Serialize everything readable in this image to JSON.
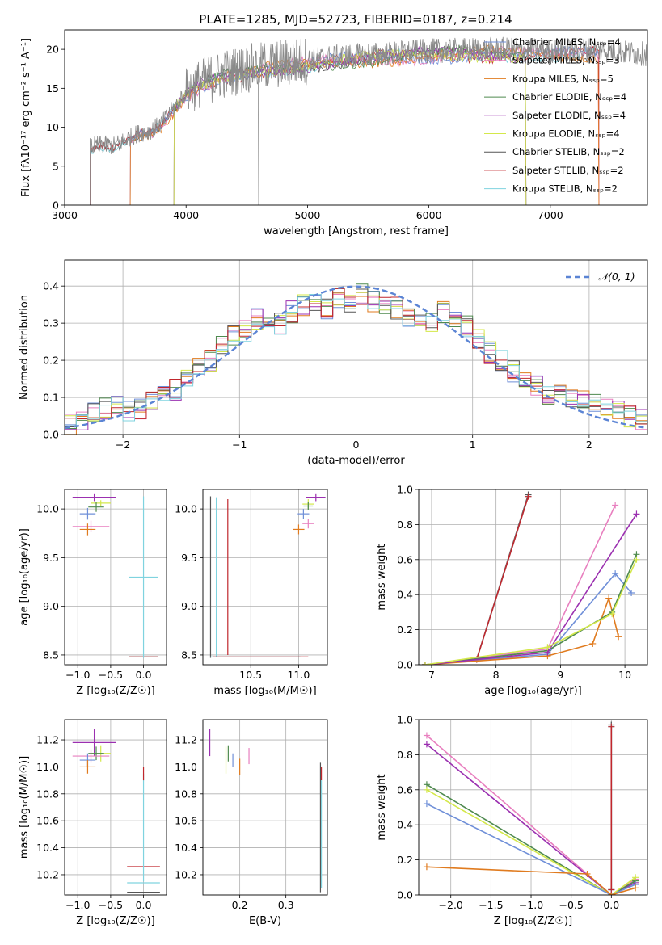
{
  "figure": {
    "title": "PLATE=1285, MJD=52723, FIBERID=0187, z=0.214"
  },
  "model_colors": {
    "Chabrier MILES": "#6f8fd8",
    "Salpeter MILES": "#e87fbf",
    "Kroupa MILES": "#e07b1f",
    "Chabrier ELODIE": "#4f8a4f",
    "Salpeter ELODIE": "#9b30b0",
    "Kroupa ELODIE": "#d4e84a",
    "Chabrier STELIB": "#555555",
    "Salpeter STELIB": "#c0272d",
    "Kroupa STELIB": "#7fd3df"
  },
  "chart_data": [
    {
      "id": "spectrum",
      "type": "line",
      "xlabel": "wavelength [Angstrom, rest frame]",
      "ylabel": "Flux [fλ10⁻¹⁷ erg cm⁻² s⁻¹ A⁻¹]",
      "xlim": [
        3000,
        7800
      ],
      "ylim": [
        0,
        22.5
      ],
      "xticks": [
        3000,
        4000,
        5000,
        6000,
        7000
      ],
      "yticks": [
        0,
        5,
        10,
        15,
        20
      ],
      "grid": false,
      "legend_position": "top-right",
      "legend": [
        "Chabrier MILES, Nₛₛₚ=4",
        "Salpeter MILES, Nₛₛₚ=3",
        "Kroupa MILES, Nₛₛₚ=5",
        "Chabrier ELODIE, Nₛₛₚ=4",
        "Salpeter ELODIE, Nₛₛₚ=4",
        "Kroupa ELODIE, Nₛₛₚ=4",
        "Chabrier STELIB, Nₛₛₚ=2",
        "Salpeter STELIB, Nₛₛₚ=2",
        "Kroupa STELIB, Nₛₛₚ=2"
      ],
      "data_curve": {
        "x": [
          3210,
          3300,
          3400,
          3500,
          3600,
          3700,
          3800,
          3900,
          4000,
          4100,
          4200,
          4300,
          4400,
          4500,
          4600,
          4700,
          4800,
          4900,
          5000,
          5200,
          5400,
          5600,
          5800,
          6000,
          6200,
          6400,
          6600,
          6800,
          7000,
          7200,
          7400,
          7600,
          7800
        ],
        "y": [
          7.5,
          7.8,
          7.6,
          8.4,
          9.2,
          9.5,
          10.5,
          12.5,
          14.5,
          15.5,
          16.2,
          16.8,
          17.2,
          17.5,
          17.8,
          18.0,
          18.2,
          18.4,
          18.6,
          19.0,
          19.2,
          19.4,
          19.6,
          19.8,
          19.9,
          20.0,
          20.0,
          19.9,
          19.8,
          19.9,
          20.0,
          19.6,
          19.4
        ]
      },
      "model_start_wavelengths": {
        "Chabrier MILES": 3540,
        "Salpeter MILES": 3540,
        "Kroupa MILES": 3540,
        "Chabrier ELODIE": 3900,
        "Salpeter ELODIE": 3900,
        "Kroupa ELODIE": 3900,
        "Chabrier STELIB": 3210,
        "Salpeter STELIB": 3210,
        "Kroupa STELIB": 3210
      }
    },
    {
      "id": "residuals",
      "type": "histogram",
      "xlabel": "(data-model)/error",
      "ylabel": "Normed distribution",
      "xlim": [
        -2.5,
        2.5
      ],
      "ylim": [
        0,
        0.47
      ],
      "xticks": [
        -2,
        -1,
        0,
        1,
        2
      ],
      "yticks": [
        0.0,
        0.1,
        0.2,
        0.3,
        0.4
      ],
      "grid": true,
      "legend_position": "top-right",
      "legend": [
        "𝒩(0, 1)"
      ],
      "bin_width": 0.1,
      "bins_x0": [
        -2.5,
        -2.4,
        -2.3,
        -2.2,
        -2.1,
        -2.0,
        -1.9,
        -1.8,
        -1.7,
        -1.6,
        -1.5,
        -1.4,
        -1.3,
        -1.2,
        -1.1,
        -1.0,
        -0.9,
        -0.8,
        -0.7,
        -0.6,
        -0.5,
        -0.4,
        -0.3,
        -0.2,
        -0.1,
        0.0,
        0.1,
        0.2,
        0.3,
        0.4,
        0.5,
        0.6,
        0.7,
        0.8,
        0.9,
        1.0,
        1.1,
        1.2,
        1.3,
        1.4,
        1.5,
        1.6,
        1.7,
        1.8,
        1.9,
        2.0,
        2.1,
        2.2,
        2.3,
        2.4
      ],
      "typical_heights": [
        0.03,
        0.04,
        0.06,
        0.07,
        0.08,
        0.06,
        0.07,
        0.09,
        0.1,
        0.12,
        0.15,
        0.18,
        0.2,
        0.24,
        0.27,
        0.28,
        0.31,
        0.3,
        0.3,
        0.33,
        0.35,
        0.36,
        0.34,
        0.37,
        0.36,
        0.38,
        0.36,
        0.35,
        0.34,
        0.32,
        0.31,
        0.3,
        0.33,
        0.31,
        0.29,
        0.26,
        0.22,
        0.2,
        0.17,
        0.15,
        0.13,
        0.11,
        0.12,
        0.1,
        0.09,
        0.08,
        0.07,
        0.06,
        0.05,
        0.04
      ]
    },
    {
      "id": "age_vs_Z",
      "type": "errorbar",
      "xlabel": "Z [log₁₀(Z/Z☉)]",
      "ylabel": "age  [log₁₀(age/yr)]",
      "xlim": [
        -1.2,
        0.35
      ],
      "ylim": [
        8.4,
        10.2
      ],
      "xticks": [
        -1.0,
        -0.5,
        0.0
      ],
      "yticks": [
        8.5,
        9.0,
        9.5,
        10.0
      ],
      "grid": true,
      "points": [
        {
          "model": "Salpeter ELODIE",
          "x": -0.75,
          "xerr": 0.33,
          "y": 10.12,
          "yerr": 0.04
        },
        {
          "model": "Kroupa ELODIE",
          "x": -0.65,
          "xerr": 0.15,
          "y": 10.06,
          "yerr": 0.03
        },
        {
          "model": "Chabrier ELODIE",
          "x": -0.72,
          "xerr": 0.12,
          "y": 10.02,
          "yerr": 0.05
        },
        {
          "model": "Chabrier MILES",
          "x": -0.85,
          "xerr": 0.12,
          "y": 9.95,
          "yerr": 0.06
        },
        {
          "model": "Salpeter MILES",
          "x": -0.8,
          "xerr": 0.28,
          "y": 9.82,
          "yerr": 0.06
        },
        {
          "model": "Kroupa MILES",
          "x": -0.85,
          "xerr": 0.12,
          "y": 9.79,
          "yerr": 0.06
        },
        {
          "model": "Chabrier STELIB",
          "x": 0.0,
          "xerr": 0.22,
          "y": 8.48,
          "yerr": 0.0
        },
        {
          "model": "Salpeter STELIB",
          "x": 0.0,
          "xerr": 0.22,
          "y": 8.48,
          "yerr": 0.0
        },
        {
          "model": "Kroupa STELIB",
          "x": 0.0,
          "xerr": 0.22,
          "y": 9.3,
          "yerr": 0.83
        }
      ]
    },
    {
      "id": "age_vs_mass",
      "type": "errorbar",
      "xlabel": "mass [log₁₀(M/M☉)]",
      "ylabel": "",
      "xlim": [
        10.0,
        11.3
      ],
      "ylim": [
        8.4,
        10.2
      ],
      "xticks": [
        10.5,
        11.0
      ],
      "yticks": [
        8.5,
        9.0,
        9.5,
        10.0
      ],
      "grid": true,
      "points": [
        {
          "model": "Salpeter ELODIE",
          "x": 11.18,
          "xerr": 0.1,
          "y": 10.12,
          "yerr": 0.04
        },
        {
          "model": "Kroupa ELODIE",
          "x": 11.1,
          "xerr": 0.06,
          "y": 10.05,
          "yerr": 0.05
        },
        {
          "model": "Chabrier ELODIE",
          "x": 11.1,
          "xerr": 0.05,
          "y": 10.03,
          "yerr": 0.04
        },
        {
          "model": "Chabrier MILES",
          "x": 11.05,
          "xerr": 0.06,
          "y": 9.95,
          "yerr": 0.05
        },
        {
          "model": "Salpeter MILES",
          "x": 11.1,
          "xerr": 0.06,
          "y": 9.85,
          "yerr": 0.05
        },
        {
          "model": "Kroupa MILES",
          "x": 11.0,
          "xerr": 0.06,
          "y": 9.79,
          "yerr": 0.05
        },
        {
          "model": "Chabrier STELIB",
          "x": 10.08,
          "xerr": 0.0,
          "y": 9.3,
          "yerr": 0.83
        },
        {
          "model": "Salpeter STELIB",
          "x": 10.26,
          "xerr": 0.0,
          "y": 9.3,
          "yerr": 0.8
        },
        {
          "model": "Kroupa STELIB",
          "x": 10.14,
          "xerr": 0.0,
          "y": 9.3,
          "yerr": 0.82
        },
        {
          "model": "Kroupa STELIB",
          "x": 10.55,
          "xerr": 0.47,
          "y": 8.48,
          "yerr": 0.0
        },
        {
          "model": "Salpeter STELIB",
          "x": 10.6,
          "xerr": 0.5,
          "y": 8.48,
          "yerr": 0.0
        }
      ]
    },
    {
      "id": "massweight_vs_age",
      "type": "line",
      "xlabel": "age  [log₁₀(age/yr)]",
      "ylabel": "mass weight",
      "xlim": [
        6.8,
        10.35
      ],
      "ylim": [
        0,
        1.0
      ],
      "xticks": [
        7,
        8,
        9,
        10
      ],
      "yticks": [
        0.0,
        0.2,
        0.4,
        0.6,
        0.8,
        1.0
      ],
      "grid": true,
      "series": [
        {
          "model": "Chabrier STELIB",
          "x": [
            7.7,
            8.5
          ],
          "y": [
            0.03,
            0.97
          ]
        },
        {
          "model": "Kroupa STELIB",
          "x": [
            7.7,
            8.5
          ],
          "y": [
            0.03,
            0.96
          ]
        },
        {
          "model": "Salpeter STELIB",
          "x": [
            7.7,
            8.5
          ],
          "y": [
            0.03,
            0.96
          ]
        },
        {
          "model": "Chabrier MILES",
          "x": [
            6.9,
            8.8,
            9.85,
            10.1
          ],
          "y": [
            0.0,
            0.06,
            0.52,
            0.41
          ]
        },
        {
          "model": "Salpeter MILES",
          "x": [
            6.9,
            8.8,
            9.85
          ],
          "y": [
            0.0,
            0.09,
            0.91
          ]
        },
        {
          "model": "Kroupa MILES",
          "x": [
            6.9,
            8.8,
            9.5,
            9.75,
            9.9
          ],
          "y": [
            0.0,
            0.05,
            0.12,
            0.38,
            0.16
          ]
        },
        {
          "model": "Chabrier ELODIE",
          "x": [
            6.9,
            8.8,
            9.8,
            10.18
          ],
          "y": [
            0.0,
            0.08,
            0.3,
            0.63
          ]
        },
        {
          "model": "Salpeter ELODIE",
          "x": [
            6.9,
            8.8,
            10.18
          ],
          "y": [
            0.0,
            0.07,
            0.86
          ]
        },
        {
          "model": "Kroupa ELODIE",
          "x": [
            6.9,
            8.8,
            9.8,
            10.18
          ],
          "y": [
            0.0,
            0.1,
            0.29,
            0.6
          ]
        }
      ]
    },
    {
      "id": "mass_vs_Z",
      "type": "errorbar",
      "xlabel": "Z [log₁₀(Z/Z☉)]",
      "ylabel": "mass [log₁₀(M/M☉)]",
      "xlim": [
        -1.2,
        0.35
      ],
      "ylim": [
        10.05,
        11.35
      ],
      "xticks": [
        -1.0,
        -0.5,
        0.0
      ],
      "yticks": [
        10.2,
        10.4,
        10.6,
        10.8,
        11.0,
        11.2
      ],
      "grid": true,
      "points": [
        {
          "model": "Salpeter ELODIE",
          "x": -0.75,
          "xerr": 0.33,
          "y": 11.18,
          "yerr": 0.1
        },
        {
          "model": "Kroupa ELODIE",
          "x": -0.65,
          "xerr": 0.15,
          "y": 11.1,
          "yerr": 0.06
        },
        {
          "model": "Chabrier ELODIE",
          "x": -0.72,
          "xerr": 0.12,
          "y": 11.1,
          "yerr": 0.05
        },
        {
          "model": "Salpeter MILES",
          "x": -0.8,
          "xerr": 0.28,
          "y": 11.08,
          "yerr": 0.05
        },
        {
          "model": "Chabrier MILES",
          "x": -0.85,
          "xerr": 0.12,
          "y": 11.05,
          "yerr": 0.05
        },
        {
          "model": "Kroupa MILES",
          "x": -0.85,
          "xerr": 0.12,
          "y": 11.0,
          "yerr": 0.05
        },
        {
          "model": "Salpeter STELIB",
          "x": 0.0,
          "xerr": 0.25,
          "y": 10.26,
          "yerr": 0.0
        },
        {
          "model": "Kroupa STELIB",
          "x": 0.0,
          "xerr": 0.25,
          "y": 10.14,
          "yerr": 0.0
        },
        {
          "model": "Chabrier STELIB",
          "x": 0.0,
          "xerr": 0.25,
          "y": 10.07,
          "yerr": 0.0
        },
        {
          "model": "Kroupa STELIB",
          "x": 0.0,
          "xerr": 0.0,
          "y": 10.55,
          "yerr": 0.4
        },
        {
          "model": "Salpeter STELIB",
          "x": 0.0,
          "xerr": 0.0,
          "y": 10.95,
          "yerr": 0.05
        }
      ]
    },
    {
      "id": "mass_vs_EBV",
      "type": "errorbar",
      "xlabel": "E(B-V)",
      "ylabel": "",
      "xlim": [
        0.12,
        0.39
      ],
      "ylim": [
        10.05,
        11.35
      ],
      "xticks": [
        0.2,
        0.3
      ],
      "yticks": [
        10.2,
        10.4,
        10.6,
        10.8,
        11.0,
        11.2
      ],
      "grid": true,
      "points": [
        {
          "model": "Salpeter ELODIE",
          "x": 0.135,
          "xerr": 0.0,
          "y": 11.18,
          "yerr": 0.1
        },
        {
          "model": "Kroupa ELODIE",
          "x": 0.17,
          "xerr": 0.0,
          "y": 11.05,
          "yerr": 0.1
        },
        {
          "model": "Chabrier ELODIE",
          "x": 0.175,
          "xerr": 0.0,
          "y": 11.1,
          "yerr": 0.06
        },
        {
          "model": "Chabrier MILES",
          "x": 0.185,
          "xerr": 0.0,
          "y": 11.05,
          "yerr": 0.05
        },
        {
          "model": "Salpeter MILES",
          "x": 0.22,
          "xerr": 0.0,
          "y": 11.08,
          "yerr": 0.06
        },
        {
          "model": "Kroupa MILES",
          "x": 0.2,
          "xerr": 0.0,
          "y": 11.0,
          "yerr": 0.06
        },
        {
          "model": "Chabrier STELIB",
          "x": 0.375,
          "xerr": 0.0,
          "y": 10.55,
          "yerr": 0.48
        },
        {
          "model": "Salpeter STELIB",
          "x": 0.377,
          "xerr": 0.0,
          "y": 10.95,
          "yerr": 0.05
        },
        {
          "model": "Kroupa STELIB",
          "x": 0.377,
          "xerr": 0.0,
          "y": 10.5,
          "yerr": 0.4
        }
      ]
    },
    {
      "id": "massweight_vs_Z",
      "type": "line",
      "xlabel": "Z [log₁₀(Z/Z☉)]",
      "ylabel": "mass weight",
      "xlim": [
        -2.4,
        0.45
      ],
      "ylim": [
        0,
        1.0
      ],
      "xticks": [
        -2.0,
        -1.5,
        -1.0,
        -0.5,
        0.0
      ],
      "yticks": [
        0.0,
        0.2,
        0.4,
        0.6,
        0.8,
        1.0
      ],
      "grid": true,
      "series": [
        {
          "model": "Salpeter MILES",
          "x": [
            -2.3,
            0.0,
            0.3
          ],
          "y": [
            0.91,
            0.0,
            0.09
          ]
        },
        {
          "model": "Salpeter ELODIE",
          "x": [
            -2.3,
            0.0,
            0.3
          ],
          "y": [
            0.86,
            0.0,
            0.07
          ]
        },
        {
          "model": "Chabrier ELODIE",
          "x": [
            -2.3,
            0.0,
            0.3
          ],
          "y": [
            0.63,
            0.0,
            0.08
          ]
        },
        {
          "model": "Kroupa ELODIE",
          "x": [
            -2.3,
            0.0,
            0.3
          ],
          "y": [
            0.6,
            0.0,
            0.1
          ]
        },
        {
          "model": "Chabrier MILES",
          "x": [
            -2.3,
            0.0,
            0.3
          ],
          "y": [
            0.52,
            0.0,
            0.06
          ]
        },
        {
          "model": "Kroupa MILES",
          "x": [
            -2.3,
            -0.3,
            0.0,
            0.3
          ],
          "y": [
            0.16,
            0.12,
            0.0,
            0.04
          ]
        },
        {
          "model": "Chabrier STELIB",
          "x": [
            0.0,
            0.0
          ],
          "y": [
            0.03,
            0.97
          ]
        },
        {
          "model": "Kroupa STELIB",
          "x": [
            0.0,
            0.0
          ],
          "y": [
            0.03,
            0.96
          ]
        },
        {
          "model": "Salpeter STELIB",
          "x": [
            0.0,
            0.0
          ],
          "y": [
            0.03,
            0.96
          ]
        }
      ]
    }
  ]
}
